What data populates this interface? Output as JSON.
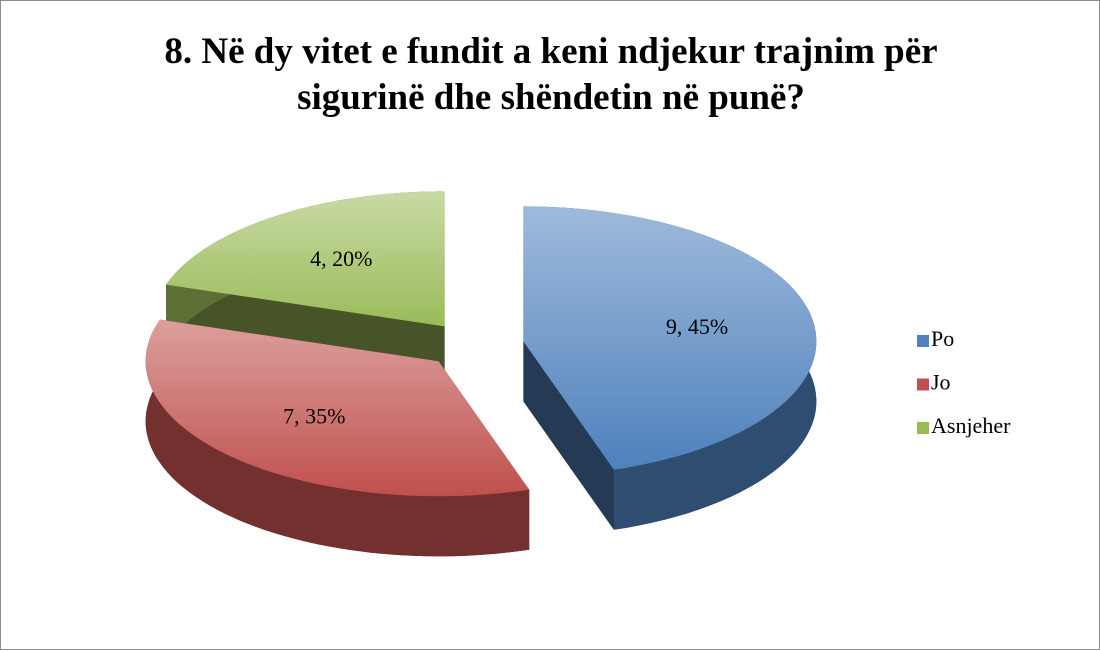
{
  "chart_data": {
    "type": "pie3d",
    "title": "8. Në dy vitet e fundit a keni ndjekur trajnim për sigurinë dhe shëndetin në punë?",
    "categories": [
      "Po",
      "Jo",
      "Asnjeher"
    ],
    "values": [
      9,
      7,
      4
    ],
    "value_labels": [
      "9, 45%",
      "7, 35%",
      "4, 20%"
    ],
    "colors": [
      "#4f81bd",
      "#c0504d",
      "#9bbb59"
    ],
    "legend": "right"
  }
}
